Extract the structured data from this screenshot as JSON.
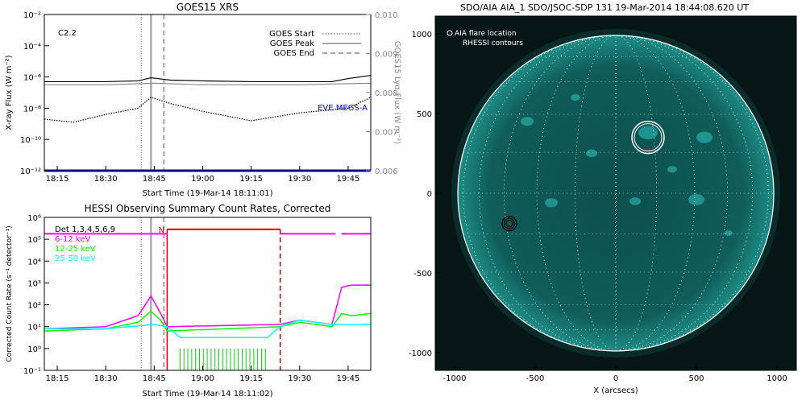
{
  "chart_data": [
    {
      "type": "line",
      "title": "GOES15 XRS",
      "xlabel": "Start Time (19-Mar-14 18:11:01)",
      "ylabel": "X-ray Flux (W m⁻²)",
      "ylabel_right": "GOES15 Lyα Flux (W m⁻²)",
      "x_ticks": [
        "18:15",
        "18:30",
        "18:45",
        "19:00",
        "19:15",
        "19:30",
        "19:45"
      ],
      "y_ticks": [
        "10⁻²",
        "10⁻⁴",
        "10⁻⁶",
        "10⁻⁸",
        "10⁻¹⁰",
        "10⁻¹²"
      ],
      "y_ticks_right": [
        "0.010",
        "0.009",
        "0.008",
        "0.007",
        "0.006"
      ],
      "class_label": "C2.2",
      "legend": [
        {
          "label": "GOES Start",
          "style": "dotted",
          "color": "#888888"
        },
        {
          "label": "GOES Peak",
          "style": "solid",
          "color": "#888888"
        },
        {
          "label": "GOES End",
          "style": "dashed",
          "color": "#888888"
        }
      ],
      "eve_label": "EVE MEGS-A",
      "eve_color": "#0000ff",
      "events": {
        "start": "18:41",
        "peak": "18:44",
        "end": "18:48"
      },
      "series": [
        {
          "name": "",
          "color": "#000000",
          "style": "solid",
          "times": [
            "18:11",
            "18:20",
            "18:30",
            "18:40",
            "18:44",
            "18:50",
            "19:00",
            "19:15",
            "19:30",
            "19:40",
            "19:45",
            "19:52"
          ],
          "log_flux": [
            -6.3,
            -6.3,
            -6.3,
            -6.25,
            -6.05,
            -6.2,
            -6.25,
            -6.3,
            -6.3,
            -6.3,
            -6.1,
            -5.9
          ]
        },
        {
          "name": "",
          "color": "#888888",
          "style": "solid",
          "times": [
            "18:11",
            "18:30",
            "18:45",
            "19:00",
            "19:30",
            "19:40",
            "19:52"
          ],
          "log_flux": [
            -6.5,
            -6.5,
            -6.4,
            -6.5,
            -6.5,
            -6.45,
            -6.4
          ]
        },
        {
          "name": "",
          "color": "#000000",
          "style": "dotted",
          "times": [
            "18:11",
            "18:20",
            "18:30",
            "18:40",
            "18:44",
            "18:50",
            "19:00",
            "19:10",
            "19:15",
            "19:30",
            "19:45",
            "19:52"
          ],
          "log_flux": [
            -8.7,
            -8.9,
            -8.4,
            -8.0,
            -7.3,
            -7.7,
            -8.2,
            -8.6,
            -8.8,
            -8.3,
            -8.0,
            -7.3
          ]
        },
        {
          "name": "EVE MEGS-A",
          "color": "#0000ff",
          "style": "solid",
          "times": [
            "18:11",
            "19:52"
          ],
          "log_flux": [
            -12.0,
            -12.0
          ]
        }
      ]
    },
    {
      "type": "line",
      "title": "HESSI Observing Summary Count Rates, Corrected",
      "xlabel": "Start Time (19-Mar-14 18:11:02)",
      "ylabel": "Corrected Count Rate (s⁻¹ detector⁻¹)",
      "x_ticks": [
        "18:15",
        "18:30",
        "18:45",
        "19:00",
        "19:15",
        "19:30",
        "19:45"
      ],
      "y_ticks": [
        "10⁶",
        "10⁵",
        "10⁴",
        "10³",
        "10²",
        "10¹",
        "10⁰",
        "10⁻¹"
      ],
      "legend": [
        {
          "label": "Det 1,3,4,5,6,9",
          "color": "#000000"
        },
        {
          "label": "6-12 keV",
          "color": "#ff00ff"
        },
        {
          "label": "12-25 keV",
          "color": "#00ff00"
        },
        {
          "label": "25-50 keV",
          "color": "#00ffff"
        }
      ],
      "night_label": "N",
      "night_start": "18:49",
      "night_end": "19:24",
      "series": [
        {
          "name": "6-12 keV",
          "color": "#ff00ff",
          "times": [
            "18:11",
            "18:30",
            "18:40",
            "18:44",
            "18:47",
            "18:49",
            "19:24",
            "19:30",
            "19:40",
            "19:43",
            "19:46",
            "19:52"
          ],
          "log_rate": [
            0.9,
            1.0,
            1.5,
            2.4,
            1.6,
            1.0,
            1.1,
            1.3,
            1.1,
            2.8,
            2.9,
            2.9
          ]
        },
        {
          "name": "12-25 keV",
          "color": "#00ff00",
          "times": [
            "18:11",
            "18:30",
            "18:40",
            "18:44",
            "18:47",
            "18:49",
            "19:24",
            "19:30",
            "19:40",
            "19:43",
            "19:46",
            "19:52"
          ],
          "log_rate": [
            0.8,
            0.9,
            1.2,
            1.7,
            1.3,
            0.8,
            1.0,
            1.2,
            1.0,
            1.6,
            1.5,
            1.6
          ]
        },
        {
          "name": "25-50 keV",
          "color": "#00ffff",
          "times": [
            "18:11",
            "18:30",
            "18:45",
            "18:49",
            "18:53",
            "19:20",
            "19:24",
            "19:30",
            "19:40",
            "19:52"
          ],
          "log_rate": [
            0.9,
            0.9,
            1.1,
            1.0,
            0.5,
            0.5,
            1.0,
            1.3,
            1.1,
            1.1
          ]
        }
      ]
    },
    {
      "type": "heatmap",
      "title": "SDO/AIA AIA_1 SDO/JSOC-SDP 131 19-Mar-2014 18:44:08.620 UT",
      "xlabel": "X (arcsecs)",
      "ylabel": "",
      "x_ticks": [
        "-1000",
        "-500",
        "0",
        "500",
        "1000"
      ],
      "y_ticks": [
        "1000",
        "500",
        "0",
        "-500",
        "-1000"
      ],
      "legend": [
        "AIA flare location",
        "RHESSI contours"
      ],
      "flare_location": [
        -660,
        -190
      ],
      "rhessi_contour_center": [
        200,
        350
      ]
    }
  ]
}
